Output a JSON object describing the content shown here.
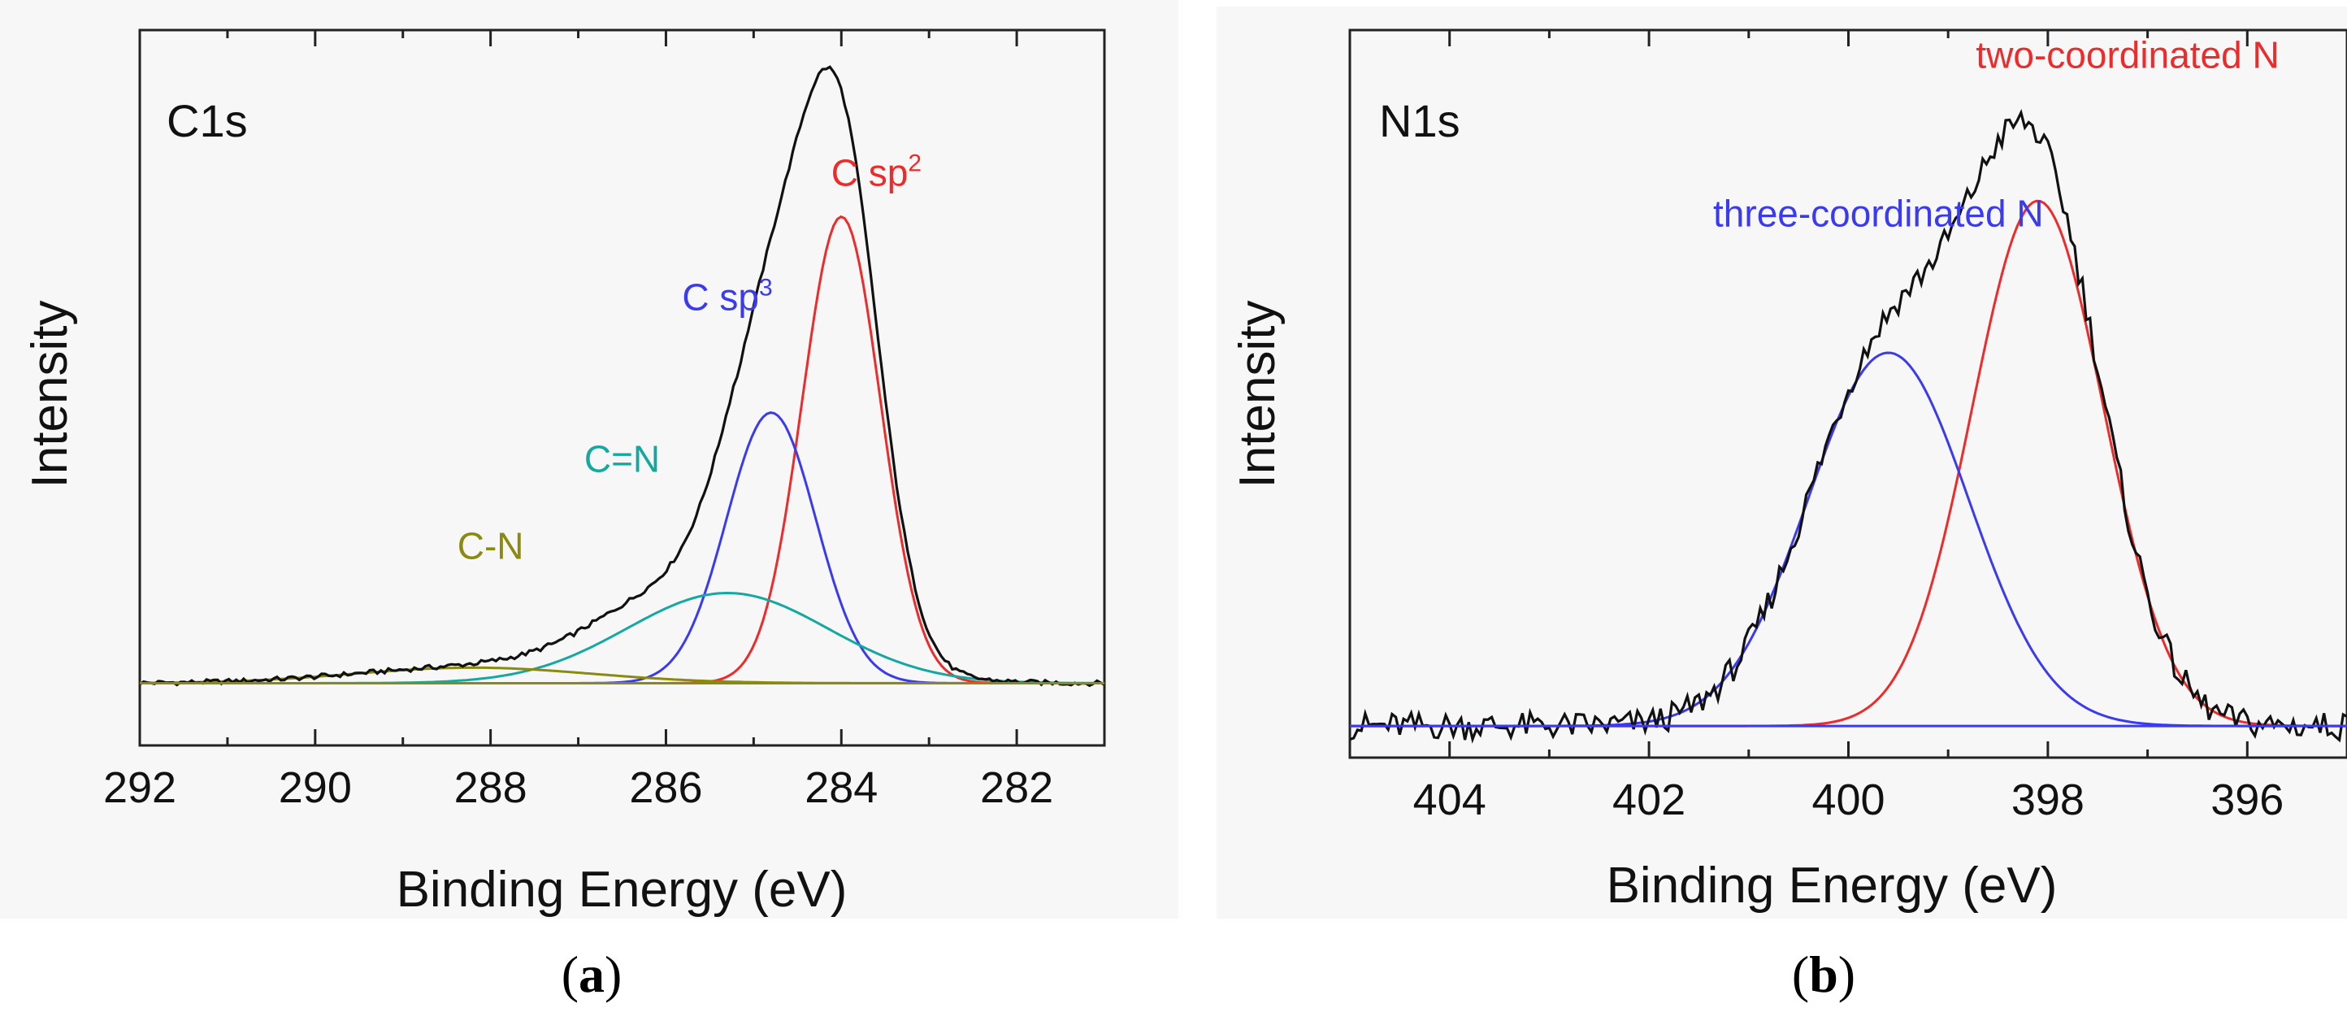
{
  "chart_data": [
    {
      "type": "line",
      "panel_label": "a",
      "title": "C1s",
      "xlabel": "Binding Energy (eV)",
      "ylabel": "Intensity",
      "xlim": [
        292,
        281
      ],
      "ylim": [
        -0.1,
        1.05
      ],
      "xticks": [
        292,
        290,
        288,
        286,
        284,
        282
      ],
      "tick_labels": [
        "292",
        "290",
        "288",
        "286",
        "284",
        "282"
      ],
      "colors": {
        "envelope": "#111111",
        "c_sp2": "#ee2b2b",
        "c_sp3": "#3a3af0",
        "c_eq_n": "#14a8a0",
        "c_n": "#8a8a10"
      },
      "peaks": [
        {
          "name": "C sp2",
          "center": 284.0,
          "fwhm": 1.05,
          "height": 0.75,
          "color": "#ee2b2b"
        },
        {
          "name": "C sp3",
          "center": 284.8,
          "fwhm": 1.2,
          "height": 0.435,
          "color": "#3a3af0"
        },
        {
          "name": "C=N",
          "center": 285.3,
          "fwhm": 2.7,
          "height": 0.145,
          "color": "#14a8a0"
        },
        {
          "name": "C-N",
          "center": 288.2,
          "fwhm": 3.2,
          "height": 0.025,
          "color": "#8a8a10"
        }
      ],
      "annotations": [
        {
          "text": "C sp",
          "sup": "2",
          "x": 283.6,
          "y": 0.8,
          "color": "#ee2b2b"
        },
        {
          "text": "C sp",
          "sup": "3",
          "x": 285.3,
          "y": 0.6,
          "color": "#3a3af0"
        },
        {
          "text": "C=N",
          "x": 286.5,
          "y": 0.34,
          "color": "#14a8a0"
        },
        {
          "text": "C-N",
          "x": 288.0,
          "y": 0.2,
          "color": "#8a8a10"
        }
      ]
    },
    {
      "type": "line",
      "panel_label": "b",
      "title": "N1s",
      "xlabel": "Binding Energy (eV)",
      "ylabel": "Intensity",
      "xlim": [
        405,
        395
      ],
      "ylim": [
        -0.05,
        1.1
      ],
      "xticks": [
        404,
        402,
        400,
        398,
        396
      ],
      "tick_labels": [
        "404",
        "402",
        "400",
        "398",
        "396"
      ],
      "colors": {
        "envelope": "#111111",
        "two_coordinated": "#ee2b2b",
        "three_coordinated": "#3a3af0"
      },
      "peaks": [
        {
          "name": "two-coordinated N",
          "center": 398.1,
          "fwhm": 1.55,
          "height": 0.83,
          "color": "#ee2b2b"
        },
        {
          "name": "three-coordinated N",
          "center": 399.6,
          "fwhm": 1.9,
          "height": 0.59,
          "color": "#3a3af0"
        }
      ],
      "annotations": [
        {
          "text": "two-coordinated N",
          "x": 397.2,
          "y": 1.04,
          "color": "#ee2b2b"
        },
        {
          "text": "three-coordinated N",
          "x": 399.7,
          "y": 0.79,
          "color": "#3a3af0"
        }
      ]
    }
  ]
}
